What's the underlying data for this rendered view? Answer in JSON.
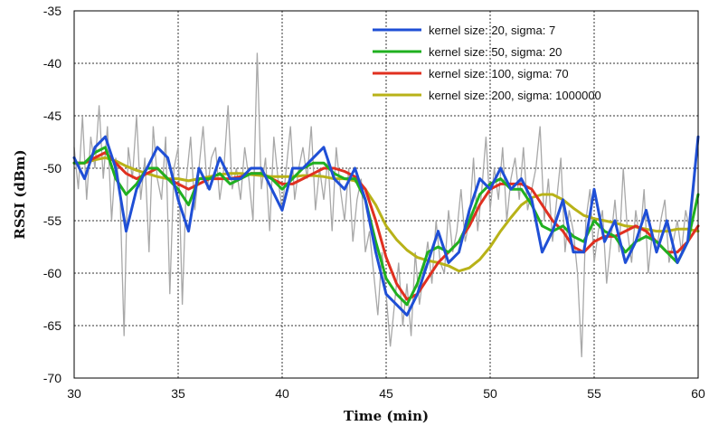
{
  "chart_data": {
    "type": "line",
    "title": "",
    "xlabel": "Time (min)",
    "ylabel": "RSSI (dBm)",
    "xlim": [
      30,
      60
    ],
    "ylim": [
      -70,
      -35
    ],
    "xticks": [
      "30",
      "35",
      "40",
      "45",
      "50",
      "55",
      "60"
    ],
    "yticks": [
      "-35",
      "-40",
      "-45",
      "-50",
      "-55",
      "-60",
      "-65",
      "-70"
    ],
    "grid": true,
    "legend_position": "top-right",
    "raw_series": {
      "color": "#a8a8a8",
      "x": [
        30.0,
        30.2,
        30.4,
        30.6,
        30.8,
        31.0,
        31.2,
        31.4,
        31.6,
        31.8,
        32.0,
        32.2,
        32.4,
        32.6,
        32.8,
        33.0,
        33.2,
        33.4,
        33.6,
        33.8,
        34.0,
        34.2,
        34.4,
        34.6,
        34.8,
        35.0,
        35.2,
        35.4,
        35.6,
        35.8,
        36.0,
        36.2,
        36.4,
        36.6,
        36.8,
        37.0,
        37.2,
        37.4,
        37.6,
        37.8,
        38.0,
        38.2,
        38.4,
        38.6,
        38.8,
        39.0,
        39.2,
        39.4,
        39.6,
        39.8,
        40.0,
        40.2,
        40.4,
        40.6,
        40.8,
        41.0,
        41.2,
        41.4,
        41.6,
        41.8,
        42.0,
        42.2,
        42.4,
        42.6,
        42.8,
        43.0,
        43.2,
        43.4,
        43.6,
        43.8,
        44.0,
        44.2,
        44.4,
        44.6,
        44.8,
        45.0,
        45.2,
        45.4,
        45.6,
        45.8,
        46.0,
        46.2,
        46.4,
        46.6,
        46.8,
        47.0,
        47.2,
        47.4,
        47.6,
        47.8,
        48.0,
        48.2,
        48.4,
        48.6,
        48.8,
        49.0,
        49.2,
        49.4,
        49.6,
        49.8,
        50.0,
        50.2,
        50.4,
        50.6,
        50.8,
        51.0,
        51.2,
        51.4,
        51.6,
        51.8,
        52.0,
        52.2,
        52.4,
        52.6,
        52.8,
        53.0,
        53.2,
        53.4,
        53.6,
        53.8,
        54.0,
        54.2,
        54.4,
        54.6,
        54.8,
        55.0,
        55.2,
        55.4,
        55.6,
        55.8,
        56.0,
        56.2,
        56.4,
        56.6,
        56.8,
        57.0,
        57.2,
        57.4,
        57.6,
        57.8,
        58.0,
        58.2,
        58.4,
        58.6,
        58.8,
        59.0,
        59.2,
        59.4,
        59.6,
        59.8,
        60.0
      ],
      "y": [
        -48,
        -52,
        -45,
        -53,
        -47,
        -50,
        -44,
        -51,
        -46,
        -55,
        -49,
        -52,
        -66,
        -48,
        -51,
        -45,
        -53,
        -49,
        -58,
        -46,
        -51,
        -53,
        -47,
        -62,
        -50,
        -48,
        -63,
        -51,
        -47,
        -54,
        -50,
        -46,
        -52,
        -49,
        -48,
        -53,
        -50,
        -44,
        -52,
        -50,
        -53,
        -48,
        -51,
        -55,
        -39,
        -52,
        -49,
        -56,
        -47,
        -51,
        -54,
        -50,
        -46,
        -53,
        -50,
        -48,
        -51,
        -46,
        -54,
        -50,
        -53,
        -49,
        -56,
        -48,
        -52,
        -55,
        -50,
        -57,
        -53,
        -51,
        -58,
        -56,
        -60,
        -64,
        -58,
        -62,
        -67,
        -63,
        -59,
        -65,
        -61,
        -66,
        -58,
        -63,
        -60,
        -57,
        -61,
        -55,
        -59,
        -60,
        -54,
        -58,
        -56,
        -52,
        -57,
        -55,
        -49,
        -56,
        -52,
        -47,
        -54,
        -50,
        -53,
        -48,
        -55,
        -51,
        -49,
        -53,
        -48,
        -54,
        -52,
        -50,
        -46,
        -55,
        -51,
        -57,
        -53,
        -49,
        -58,
        -54,
        -56,
        -60,
        -68,
        -55,
        -52,
        -59,
        -56,
        -54,
        -61,
        -57,
        -53,
        -58,
        -50,
        -56,
        -59,
        -54,
        -57,
        -52,
        -60,
        -56,
        -58,
        -55,
        -53,
        -59,
        -57,
        -55,
        -58,
        -54,
        -56,
        -52,
        -47
      ]
    },
    "series": [
      {
        "name": "kernel size: 20, sigma: 7",
        "color": "#1f4fd6",
        "x": [
          30,
          30.5,
          31,
          31.5,
          32,
          32.5,
          33,
          33.5,
          34,
          34.5,
          35,
          35.5,
          36,
          36.5,
          37,
          37.5,
          38,
          38.5,
          39,
          39.5,
          40,
          40.5,
          41,
          41.5,
          42,
          42.5,
          43,
          43.5,
          44,
          44.5,
          45,
          45.5,
          46,
          46.5,
          47,
          47.5,
          48,
          48.5,
          49,
          49.5,
          50,
          50.5,
          51,
          51.5,
          52,
          52.5,
          53,
          53.5,
          54,
          54.5,
          55,
          55.5,
          56,
          56.5,
          57,
          57.5,
          58,
          58.5,
          59,
          59.5,
          60
        ],
        "y": [
          -49,
          -51,
          -48,
          -47,
          -50,
          -56,
          -52,
          -50,
          -48,
          -49,
          -53,
          -56,
          -50,
          -52,
          -49,
          -51,
          -51,
          -50,
          -50,
          -52,
          -54,
          -50,
          -50,
          -49,
          -48,
          -51,
          -52,
          -50,
          -53,
          -58,
          -62,
          -63,
          -64,
          -62,
          -59,
          -56,
          -59,
          -58,
          -54,
          -51,
          -52,
          -50,
          -52,
          -51,
          -53,
          -58,
          -56,
          -53,
          -58,
          -58,
          -52,
          -57,
          -55,
          -59,
          -57,
          -54,
          -58,
          -55,
          -59,
          -57,
          -47
        ]
      },
      {
        "name": "kernel size: 50, sigma: 20",
        "color": "#20b020",
        "x": [
          30,
          30.5,
          31,
          31.5,
          32,
          32.5,
          33,
          33.5,
          34,
          34.5,
          35,
          35.5,
          36,
          36.5,
          37,
          37.5,
          38,
          38.5,
          39,
          39.5,
          40,
          40.5,
          41,
          41.5,
          42,
          42.5,
          43,
          43.5,
          44,
          44.5,
          45,
          45.5,
          46,
          46.5,
          47,
          47.5,
          48,
          48.5,
          49,
          49.5,
          50,
          50.5,
          51,
          51.5,
          52,
          52.5,
          53,
          53.5,
          54,
          54.5,
          55,
          55.5,
          56,
          56.5,
          57,
          57.5,
          58,
          58.5,
          59,
          59.5,
          60
        ],
        "y": [
          -49.5,
          -49.5,
          -48.5,
          -48,
          -51,
          -52.5,
          -51.5,
          -50,
          -50,
          -51,
          -52,
          -53.5,
          -51,
          -51,
          -50.5,
          -51.5,
          -51,
          -50.5,
          -50.5,
          -51,
          -52,
          -51,
          -50,
          -49.5,
          -49.5,
          -50.5,
          -51,
          -51,
          -53,
          -57,
          -60.5,
          -62,
          -63,
          -61,
          -58,
          -57.5,
          -58,
          -57,
          -55,
          -52.5,
          -51.5,
          -51,
          -52,
          -52,
          -53.5,
          -55.5,
          -56,
          -55.5,
          -56.5,
          -57,
          -55,
          -56,
          -56.5,
          -58,
          -57,
          -56.5,
          -57,
          -58,
          -59,
          -57,
          -52.5
        ]
      },
      {
        "name": "kernel size: 100, sigma: 70",
        "color": "#e03020",
        "x": [
          30,
          30.5,
          31,
          31.5,
          32,
          32.5,
          33,
          33.5,
          34,
          34.5,
          35,
          35.5,
          36,
          36.5,
          37,
          37.5,
          38,
          38.5,
          39,
          39.5,
          40,
          40.5,
          41,
          41.5,
          42,
          42.5,
          43,
          43.5,
          44,
          44.5,
          45,
          45.5,
          46,
          46.5,
          47,
          47.5,
          48,
          48.5,
          49,
          49.5,
          50,
          50.5,
          51,
          51.5,
          52,
          52.5,
          53,
          53.5,
          54,
          54.5,
          55,
          55.5,
          56,
          56.5,
          57,
          57.5,
          58,
          58.5,
          59,
          59.5,
          60
        ],
        "y": [
          -49.5,
          -49.5,
          -49,
          -48.5,
          -49.5,
          -50.5,
          -51,
          -50.5,
          -50,
          -51,
          -51.5,
          -52,
          -51.5,
          -51,
          -51,
          -51,
          -50.8,
          -50.5,
          -50.5,
          -51,
          -51.5,
          -51.5,
          -51,
          -50.5,
          -50,
          -50,
          -50.3,
          -50.8,
          -52,
          -55,
          -58.5,
          -61,
          -62.5,
          -62,
          -60.5,
          -59,
          -58,
          -57,
          -55.5,
          -53.5,
          -52,
          -51.5,
          -51.5,
          -51.5,
          -52,
          -53.5,
          -55,
          -56,
          -57.5,
          -58,
          -57,
          -56.5,
          -56.5,
          -56,
          -55.5,
          -56,
          -57,
          -58,
          -58,
          -57,
          -55.5
        ]
      },
      {
        "name": "kernel size: 200, sigma: 1000000",
        "color": "#b8b218",
        "x": [
          30,
          30.5,
          31,
          31.5,
          32,
          32.5,
          33,
          33.5,
          34,
          34.5,
          35,
          35.5,
          36,
          36.5,
          37,
          37.5,
          38,
          38.5,
          39,
          39.5,
          40,
          40.5,
          41,
          41.5,
          42,
          42.5,
          43,
          43.5,
          44,
          44.5,
          45,
          45.5,
          46,
          46.5,
          47,
          47.5,
          48,
          48.5,
          49,
          49.5,
          50,
          50.5,
          51,
          51.5,
          52,
          52.5,
          53,
          53.5,
          54,
          54.5,
          55,
          55.5,
          56,
          56.5,
          57,
          57.5,
          58,
          58.5,
          59,
          59.5,
          60
        ],
        "y": [
          -49.5,
          -49.5,
          -49.2,
          -49,
          -49.3,
          -49.8,
          -50.2,
          -50.5,
          -50.8,
          -51,
          -51,
          -51.2,
          -51,
          -50.8,
          -50.6,
          -50.5,
          -50.5,
          -50.6,
          -50.7,
          -50.8,
          -50.8,
          -50.8,
          -50.7,
          -50.7,
          -50.8,
          -51,
          -51,
          -51.2,
          -52,
          -53.5,
          -55.5,
          -56.8,
          -57.8,
          -58.5,
          -58.8,
          -59,
          -59.3,
          -59.8,
          -59.5,
          -58.7,
          -57.5,
          -56,
          -54.7,
          -53.5,
          -52.8,
          -52.5,
          -52.5,
          -53,
          -53.8,
          -54.5,
          -54.8,
          -55,
          -55.2,
          -55.5,
          -55.6,
          -55.8,
          -56,
          -56,
          -55.8,
          -55.8,
          -56
        ]
      }
    ]
  }
}
